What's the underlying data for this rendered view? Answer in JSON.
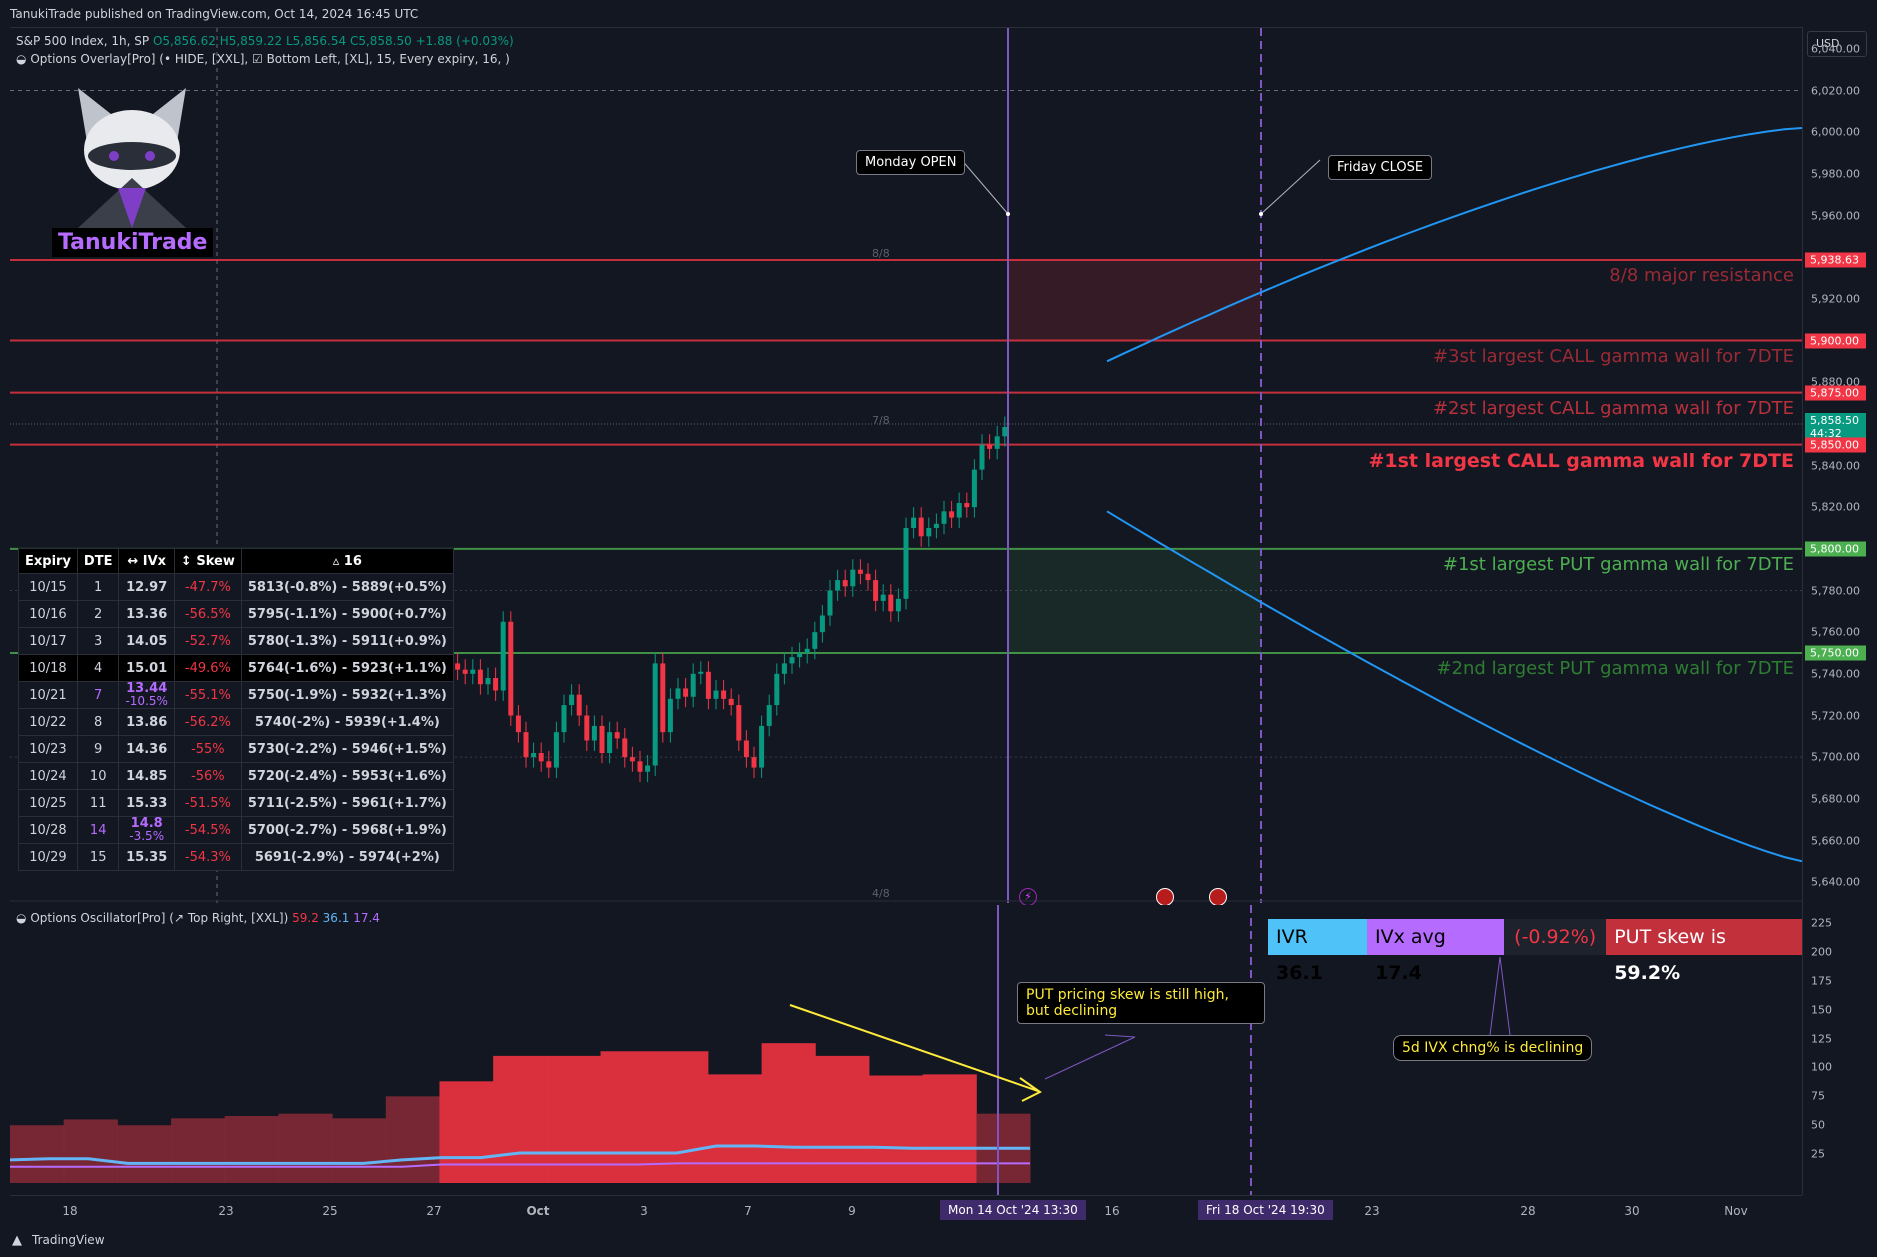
{
  "header": {
    "published": "TanukiTrade published on TradingView.com, Oct 14, 2024 16:45 UTC"
  },
  "symbol_legend": {
    "name": "S&P 500 Index, 1h, SP",
    "open": "O5,856.62",
    "high": "H5,859.22",
    "low": "L5,856.54",
    "close": "C5,858.50",
    "change": "+1.88 (+0.03%)"
  },
  "overlay_legend": "Options Overlay[Pro] (• HIDE, [XXL], ☑ Bottom Left, [XL], 15, Every expiry, 16, )",
  "logo": {
    "text": "TanukiTrade"
  },
  "currency": "USD",
  "price_axis": [
    "6,040.00",
    "6,020.00",
    "6,000.00",
    "5,980.00",
    "5,960.00",
    "5,940.00",
    "5,920.00",
    "5,880.00",
    "5,860.00",
    "5,840.00",
    "5,820.00",
    "5,800.00",
    "5,780.00",
    "5,760.00",
    "5,740.00",
    "5,720.00",
    "5,700.00",
    "5,680.00",
    "5,660.00",
    "5,640.00"
  ],
  "price_tags": [
    {
      "text": "5,938.63",
      "price": 5938.63,
      "color": "#f23645"
    },
    {
      "text": "5,900.00",
      "price": 5900,
      "color": "#f23645"
    },
    {
      "text": "5,875.00",
      "price": 5875,
      "color": "#f23645"
    },
    {
      "text": "5,858.50",
      "price": 5858.5,
      "color": "#089981",
      "sub": "44:32"
    },
    {
      "text": "5,850.00",
      "price": 5850,
      "color": "#f23645"
    },
    {
      "text": "5,800.00",
      "price": 5800,
      "color": "#4caf50"
    },
    {
      "text": "5,750.00",
      "price": 5750,
      "color": "#4caf50"
    }
  ],
  "levels": [
    {
      "label": "8/8 major resistance",
      "price": 5938.63,
      "color": "#f23645",
      "text_color": "#9a2a35"
    },
    {
      "label": "#3st largest CALL gamma wall for 7DTE",
      "price": 5900,
      "color": "#f23645",
      "text_color": "#9a2a35"
    },
    {
      "label": "#2st largest CALL gamma wall for 7DTE",
      "price": 5875,
      "color": "#f23645",
      "text_color": "#b8303c"
    },
    {
      "label": "#1st largest CALL gamma wall for 7DTE",
      "price": 5850,
      "color": "#f23645",
      "text_color": "#f23645"
    },
    {
      "label": "#1st largest PUT gamma wall for 7DTE",
      "price": 5800,
      "color": "#4caf50",
      "text_color": "#4caf50"
    },
    {
      "label": "#2nd largest PUT gamma wall for 7DTE",
      "price": 5750,
      "color": "#4caf50",
      "text_color": "#2e7d32"
    }
  ],
  "murrey": [
    "8/8",
    "7/8",
    "4/8"
  ],
  "annotations": {
    "monday_open": "Monday OPEN",
    "friday_close": "Friday CLOSE"
  },
  "expiry_table": {
    "headers": [
      "Expiry",
      "DTE",
      "↔ IVx",
      "↕ Skew",
      "▵ 16"
    ],
    "rows": [
      {
        "expiry": "10/15",
        "dte": "1",
        "ivx": "12.97",
        "ivx_chg": "",
        "skew": "-47.7%",
        "range": "5813(-0.8%) - 5889(+0.5%)"
      },
      {
        "expiry": "10/16",
        "dte": "2",
        "ivx": "13.36",
        "ivx_chg": "",
        "skew": "-56.5%",
        "range": "5795(-1.1%) - 5900(+0.7%)"
      },
      {
        "expiry": "10/17",
        "dte": "3",
        "ivx": "14.05",
        "ivx_chg": "",
        "skew": "-52.7%",
        "range": "5780(-1.3%) - 5911(+0.9%)"
      },
      {
        "expiry": "10/18",
        "dte": "4",
        "ivx": "15.01",
        "ivx_chg": "",
        "skew": "-49.6%",
        "range": "5764(-1.6%) - 5923(+1.1%)"
      },
      {
        "expiry": "10/21",
        "dte": "7",
        "ivx": "13.44",
        "ivx_chg": "-10.5%",
        "skew": "-55.1%",
        "range": "5750(-1.9%) - 5932(+1.3%)"
      },
      {
        "expiry": "10/22",
        "dte": "8",
        "ivx": "13.86",
        "ivx_chg": "",
        "skew": "-56.2%",
        "range": "5740(-2%) - 5939(+1.4%)"
      },
      {
        "expiry": "10/23",
        "dte": "9",
        "ivx": "14.36",
        "ivx_chg": "",
        "skew": "-55%",
        "range": "5730(-2.2%) - 5946(+1.5%)"
      },
      {
        "expiry": "10/24",
        "dte": "10",
        "ivx": "14.85",
        "ivx_chg": "",
        "skew": "-56%",
        "range": "5720(-2.4%) - 5953(+1.6%)"
      },
      {
        "expiry": "10/25",
        "dte": "11",
        "ivx": "15.33",
        "ivx_chg": "",
        "skew": "-51.5%",
        "range": "5711(-2.5%) - 5961(+1.7%)"
      },
      {
        "expiry": "10/28",
        "dte": "14",
        "ivx": "14.8",
        "ivx_chg": "-3.5%",
        "skew": "-54.5%",
        "range": "5700(-2.7%) - 5968(+1.9%)"
      },
      {
        "expiry": "10/29",
        "dte": "15",
        "ivx": "15.35",
        "ivx_chg": "",
        "skew": "-54.3%",
        "range": "5691(-2.9%) - 5974(+2%)"
      }
    ]
  },
  "oscillator": {
    "legend": "Options Oscillator[Pro] (↗ Top Right, [XXL])",
    "values": [
      "59.2",
      "36.1",
      "17.4"
    ],
    "axis": [
      "225",
      "200",
      "175",
      "150",
      "125",
      "100",
      "75",
      "50",
      "25"
    ],
    "stats": {
      "ivr_label": "IVR",
      "ivr": "36.1",
      "ivx_label": "IVx avg",
      "ivx": "17.4",
      "chg": "(-0.92%)",
      "skew_label": "PUT skew is",
      "skew": "59.2%"
    },
    "note1": "PUT pricing skew is still high, but declining",
    "note2": "5d IVX chng% is declining"
  },
  "time_axis": [
    "18",
    "23",
    "25",
    "27",
    "Oct",
    "3",
    "7",
    "9",
    "16",
    "23",
    "28",
    "30",
    "Nov"
  ],
  "time_highlights": [
    {
      "text": "Mon 14 Oct '24  13:30"
    },
    {
      "text": "Fri 18 Oct '24  19:30"
    }
  ],
  "footer": {
    "brand": "TradingView"
  },
  "chart_data": {
    "type": "candlestick",
    "title": "S&P 500 Index, 1h, SP",
    "ylim": [
      5630,
      6050
    ],
    "close_series": [
      5745,
      5742,
      5740,
      5742,
      5735,
      5738,
      5732,
      5765,
      5720,
      5712,
      5700,
      5702,
      5698,
      5695,
      5712,
      5725,
      5730,
      5720,
      5708,
      5715,
      5702,
      5712,
      5709,
      5700,
      5698,
      5693,
      5696,
      5745,
      5712,
      5728,
      5733,
      5729,
      5740,
      5741,
      5728,
      5732,
      5728,
      5725,
      5708,
      5700,
      5695,
      5715,
      5725,
      5740,
      5745,
      5748,
      5750,
      5752,
      5760,
      5768,
      5780,
      5785,
      5782,
      5790,
      5788,
      5785,
      5775,
      5778,
      5770,
      5776,
      5810,
      5815,
      5806,
      5810,
      5812,
      5818,
      5815,
      5822,
      5820,
      5838,
      5850,
      5848,
      5854,
      5858.5
    ],
    "projection_upper": {
      "from": 5890,
      "to": 6002
    },
    "projection_lower": {
      "from": 5818,
      "to": 5650
    }
  }
}
